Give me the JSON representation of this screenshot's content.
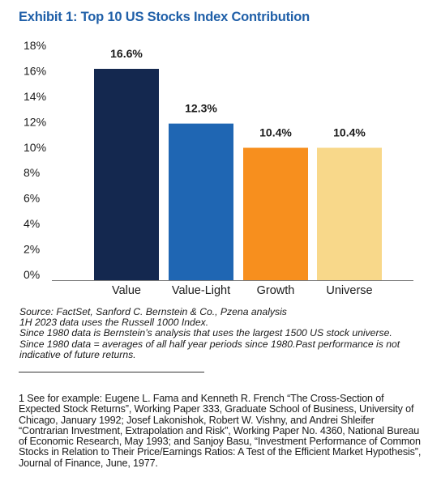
{
  "title": "Exhibit 1: Top 10 US Stocks Index Contribution",
  "chart_data": {
    "type": "bar",
    "title": "Exhibit 1: Top 10 US Stocks Index Contribution",
    "xlabel": "",
    "ylabel": "",
    "categories": [
      "Value",
      "Value-Light",
      "Growth",
      "Universe"
    ],
    "values": [
      16.6,
      12.3,
      10.4,
      10.4
    ],
    "data_labels": [
      "16.6%",
      "12.3%",
      "10.4%",
      "10.4%"
    ],
    "colors": [
      "#14284f",
      "#1f66b3",
      "#f78f1e",
      "#f8d88a"
    ],
    "ylim": [
      0,
      18
    ],
    "yticks": [
      0,
      2,
      4,
      6,
      8,
      10,
      12,
      14,
      16,
      18
    ],
    "ytick_labels": [
      "0%",
      "2%",
      "4%",
      "6%",
      "8%",
      "10%",
      "12%",
      "14%",
      "16%",
      "18%"
    ],
    "grid": false,
    "legend": "none"
  },
  "notes": [
    "Source: FactSet, Sanford C. Bernstein & Co., Pzena analysis",
    "1H 2023 data uses the Russell 1000 Index.",
    "Since 1980 data is Bernstein’s analysis that uses the largest 1500 US stock universe.",
    "Since 1980 data = averages of all half year periods since 1980.Past performance is not indicative of future returns."
  ],
  "footnote": "1  See for example: Eugene L. Fama and Kenneth R. French “The Cross-Section of Expected Stock Returns”, Working Paper 333, Graduate School of Business, University of Chicago, January 1992; Josef Lakonishok, Robert W. Vishny, and Andrei Shleifer “Contrarian Investment, Extrapolation and Risk”, Working Paper No. 4360, National Bureau of Economic Research, May 1993; and Sanjoy Basu, “Investment Performance of Common Stocks in Relation to Their Price/Earnings Ratios:  A Test of the Efficient Market Hypothesis”, Journal of Finance, June, 1977."
}
